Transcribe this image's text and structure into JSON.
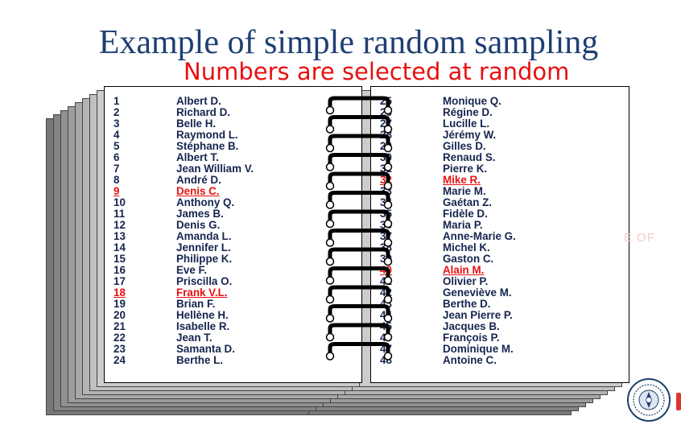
{
  "title": "Example of simple random sampling",
  "subtitle": "Numbers are selected at random",
  "watermark_text": "E OF",
  "colors": {
    "title": "#1f3f73",
    "subtitle": "#e81010",
    "list_text": "#16254f",
    "selected": "#e81010"
  },
  "seal_icon": "institution-seal-icon",
  "left_page": [
    {
      "num": "1",
      "name": "Albert D.",
      "selected": false
    },
    {
      "num": "2",
      "name": "Richard D.",
      "selected": false
    },
    {
      "num": "3",
      "name": "Belle H.",
      "selected": false
    },
    {
      "num": "4",
      "name": "Raymond L.",
      "selected": false
    },
    {
      "num": "5",
      "name": "Stéphane B.",
      "selected": false
    },
    {
      "num": "6",
      "name": "Albert T.",
      "selected": false
    },
    {
      "num": "7",
      "name": "Jean William V.",
      "selected": false
    },
    {
      "num": "8",
      "name": "André D.",
      "selected": false
    },
    {
      "num": "9",
      "name": "Denis C.",
      "selected": true
    },
    {
      "num": "10",
      "name": "Anthony Q.",
      "selected": false
    },
    {
      "num": "11",
      "name": "James B.",
      "selected": false
    },
    {
      "num": "12",
      "name": "Denis G.",
      "selected": false
    },
    {
      "num": "13",
      "name": "Amanda L.",
      "selected": false
    },
    {
      "num": "14",
      "name": "Jennifer L.",
      "selected": false
    },
    {
      "num": "15",
      "name": "Philippe K.",
      "selected": false
    },
    {
      "num": "16",
      "name": "Eve F.",
      "selected": false
    },
    {
      "num": "17",
      "name": "Priscilla O.",
      "selected": false
    },
    {
      "num": "18",
      "name": "Frank V.L.",
      "selected": true
    },
    {
      "num": "19",
      "name": "Brian F.",
      "selected": false
    },
    {
      "num": "20",
      "name": "Hellène H.",
      "selected": false
    },
    {
      "num": "21",
      "name": "Isabelle R.",
      "selected": false
    },
    {
      "num": "22",
      "name": "Jean T.",
      "selected": false
    },
    {
      "num": "23",
      "name": "Samanta D.",
      "selected": false
    },
    {
      "num": "24",
      "name": "Berthe L.",
      "selected": false
    }
  ],
  "right_page": [
    {
      "num": "25",
      "name": "Monique Q.",
      "selected": false
    },
    {
      "num": "26",
      "name": "Régine D.",
      "selected": false
    },
    {
      "num": "27",
      "name": "Lucille L.",
      "selected": false
    },
    {
      "num": "28",
      "name": "Jérémy W.",
      "selected": false
    },
    {
      "num": "29",
      "name": "Gilles D.",
      "selected": false
    },
    {
      "num": "30",
      "name": "Renaud S.",
      "selected": false
    },
    {
      "num": "31",
      "name": "Pierre K.",
      "selected": false
    },
    {
      "num": "32",
      "name": "Mike R.",
      "selected": true
    },
    {
      "num": "33",
      "name": "Marie M.",
      "selected": false
    },
    {
      "num": "34",
      "name": "Gaétan Z.",
      "selected": false
    },
    {
      "num": "35",
      "name": "Fidèle D.",
      "selected": false
    },
    {
      "num": "36",
      "name": "Maria P.",
      "selected": false
    },
    {
      "num": "37",
      "name": "Anne-Marie G.",
      "selected": false
    },
    {
      "num": "38",
      "name": "Michel K.",
      "selected": false
    },
    {
      "num": "39",
      "name": "Gaston C.",
      "selected": false
    },
    {
      "num": "40",
      "name": "Alain M.",
      "selected": true
    },
    {
      "num": "41",
      "name": "Olivier P.",
      "selected": false
    },
    {
      "num": "42",
      "name": "Geneviève M.",
      "selected": false
    },
    {
      "num": "43",
      "name": "Berthe D.",
      "selected": false
    },
    {
      "num": "44",
      "name": "Jean Pierre P.",
      "selected": false
    },
    {
      "num": "45",
      "name": "Jacques B.",
      "selected": false
    },
    {
      "num": "46",
      "name": "François P.",
      "selected": false
    },
    {
      "num": "47",
      "name": "Dominique M.",
      "selected": false
    },
    {
      "num": "48",
      "name": "Antoine C.",
      "selected": false
    }
  ]
}
